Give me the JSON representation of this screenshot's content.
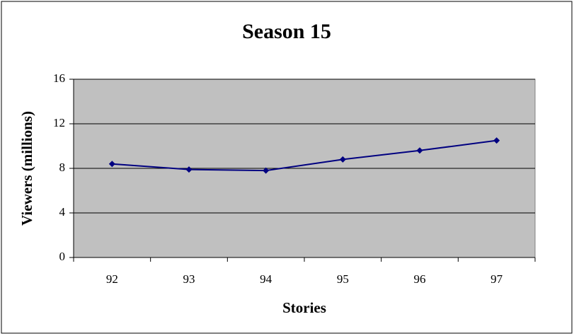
{
  "chart_data": {
    "type": "line",
    "title": "Season 15",
    "x_label": "Stories",
    "y_label": "Viewers (millions)",
    "categories": [
      "92",
      "93",
      "94",
      "95",
      "96",
      "97"
    ],
    "series": [
      {
        "name": "Viewers",
        "color": "#000080",
        "values": [
          8.4,
          7.9,
          7.8,
          8.8,
          9.6,
          10.5
        ]
      }
    ],
    "ylim": [
      0,
      16
    ],
    "yticks": [
      0,
      4,
      8,
      12,
      16
    ],
    "grid": true,
    "plot_background": "#c0c0c0"
  }
}
